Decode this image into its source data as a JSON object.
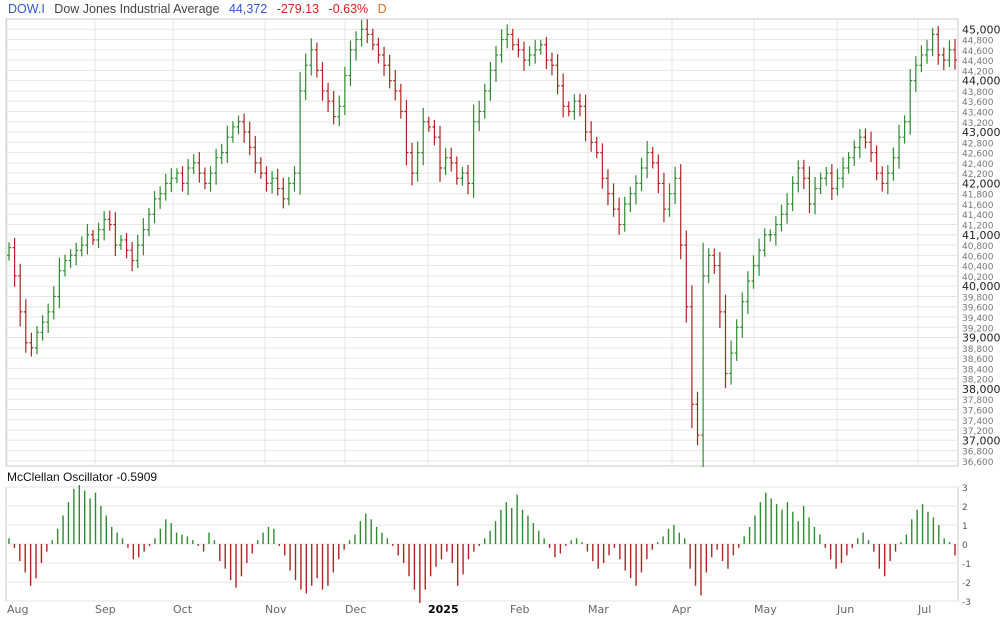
{
  "header": {
    "symbol": "DOW.I",
    "name": "Dow Jones Industrial Average",
    "last": "44,372",
    "change": "-279.13",
    "change_pct": "-0.63%",
    "period": "D"
  },
  "oscillator": {
    "title": "McClellan Oscillator",
    "value": "-0.5909"
  },
  "colors": {
    "up": "#2e8b2e",
    "down": "#b22222",
    "symbol": "#3355cc",
    "name": "#444444",
    "last": "#3355cc",
    "negative": "#d42020",
    "period": "#e07020",
    "grid": "#e6e6e6",
    "frame": "#c8c8c8"
  },
  "chart_data": [
    {
      "type": "ohlc",
      "title": "Dow Jones Industrial Average",
      "y_ticks": [
        "36,600",
        "36,800",
        "37,000",
        "37,200",
        "37,400",
        "37,600",
        "37,800",
        "38,000",
        "38,200",
        "38,400",
        "38,600",
        "38,800",
        "39,000",
        "39,200",
        "39,400",
        "39,600",
        "39,800",
        "40,000",
        "40,200",
        "40,400",
        "40,600",
        "40,800",
        "41,000",
        "41,200",
        "41,400",
        "41,600",
        "41,800",
        "42,000",
        "42,200",
        "42,400",
        "42,600",
        "42,800",
        "43,000",
        "43,200",
        "43,400",
        "43,600",
        "43,800",
        "44,000",
        "44,200",
        "44,400",
        "44,600",
        "44,800",
        "45,000"
      ],
      "x_labels": [
        "Aug",
        "Sep",
        "Oct",
        "Nov",
        "Dec",
        "2025",
        "Feb",
        "Mar",
        "Apr",
        "May",
        "Jun",
        "Jul"
      ],
      "ylim": [
        36500,
        45200
      ],
      "grid": true,
      "series_close": [
        40750,
        40200,
        39500,
        38900,
        38800,
        39100,
        39300,
        39500,
        39800,
        40300,
        40500,
        40600,
        40700,
        40800,
        41000,
        40900,
        41100,
        41300,
        41200,
        40800,
        40900,
        40700,
        40500,
        40800,
        41100,
        41400,
        41700,
        41800,
        42000,
        42100,
        42200,
        42000,
        42300,
        42400,
        42200,
        42000,
        42200,
        42500,
        42600,
        42900,
        43100,
        43200,
        43000,
        42700,
        42400,
        42200,
        42000,
        42100,
        41900,
        41700,
        42000,
        42200,
        43800,
        44300,
        44600,
        44200,
        43800,
        43600,
        43300,
        43500,
        44100,
        44600,
        44800,
        45000,
        44900,
        44700,
        44500,
        44300,
        44000,
        43800,
        43400,
        42600,
        42200,
        42600,
        43200,
        43100,
        42900,
        42300,
        42500,
        42400,
        42100,
        42200,
        42000,
        43200,
        43400,
        43800,
        44200,
        44500,
        44800,
        44900,
        44700,
        44600,
        44400,
        44500,
        44600,
        44700,
        44400,
        44300,
        43900,
        43500,
        43400,
        43600,
        43500,
        43000,
        42800,
        42600,
        42100,
        41800,
        41500,
        41200,
        41600,
        41800,
        42000,
        42300,
        42600,
        42400,
        42000,
        41500,
        41800,
        42100,
        40800,
        39600,
        37700,
        37100,
        40200,
        40600,
        40400,
        39500,
        38300,
        38700,
        39200,
        39700,
        40100,
        40400,
        40700,
        41000,
        41000,
        41200,
        41400,
        41600,
        42000,
        42300,
        42100,
        41600,
        41900,
        42100,
        42200,
        41900,
        42100,
        42300,
        42500,
        42700,
        42900,
        42800,
        42600,
        42200,
        42000,
        42200,
        42500,
        42900,
        43200,
        44000,
        44300,
        44500,
        44600,
        44900,
        44500,
        44400,
        44600,
        44400
      ],
      "y_unit": "index points"
    },
    {
      "type": "bar",
      "title": "McClellan Oscillator -0.5909",
      "ylim": [
        -3,
        3
      ],
      "y_ticks": [
        "-3",
        "-2",
        "-1",
        "0",
        "1",
        "2",
        "3"
      ],
      "values": [
        0.3,
        -0.2,
        -0.9,
        -1.5,
        -2.2,
        -1.8,
        -1.0,
        -0.4,
        0.2,
        0.8,
        1.5,
        2.2,
        2.9,
        3.1,
        2.8,
        2.4,
        2.7,
        2.0,
        1.5,
        0.9,
        0.6,
        0.3,
        -0.2,
        -0.8,
        -0.7,
        -0.4,
        -0.1,
        0.3,
        0.8,
        1.3,
        1.1,
        0.6,
        0.5,
        0.4,
        0.2,
        -0.1,
        -0.4,
        0.6,
        0.2,
        -0.9,
        -1.3,
        -1.9,
        -2.3,
        -1.7,
        -1.0,
        -0.5,
        0.2,
        0.6,
        0.9,
        0.8,
        -0.1,
        -0.6,
        -1.4,
        -1.9,
        -2.4,
        -2.6,
        -2.2,
        -1.8,
        -2.4,
        -2.2,
        -1.5,
        -0.8,
        -0.3,
        0.2,
        0.5,
        1.2,
        1.6,
        1.3,
        0.9,
        0.6,
        0.3,
        -0.1,
        -0.6,
        -1.0,
        -1.7,
        -2.4,
        -3.1,
        -2.4,
        -1.7,
        -1.2,
        -0.8,
        -0.4,
        -1.0,
        -2.2,
        -1.6,
        -0.8,
        -0.4,
        -0.1,
        0.3,
        0.7,
        1.2,
        1.8,
        2.2,
        1.9,
        2.6,
        1.8,
        1.5,
        1.1,
        0.7,
        0.3,
        -0.2,
        -0.7,
        -0.5,
        -0.1,
        0.2,
        0.3,
        0.1,
        -0.4,
        -0.9,
        -1.3,
        -1.0,
        -0.6,
        -0.2,
        -0.8,
        -1.4,
        -1.8,
        -2.2,
        -1.5,
        -0.8,
        -0.3,
        0.1,
        0.4,
        0.8,
        1.0,
        0.6,
        0.3,
        -1.3,
        -2.2,
        -2.7,
        -1.5,
        -0.7,
        -0.3,
        -0.9,
        -1.3,
        -0.6,
        -0.2,
        0.4,
        0.9,
        1.5,
        2.2,
        2.7,
        2.4,
        2.1,
        1.8,
        2.2,
        1.7,
        1.2,
        2.0,
        1.4,
        0.9,
        0.5,
        -0.2,
        -0.8,
        -1.3,
        -1.0,
        -0.6,
        -0.2,
        0.3,
        0.6,
        0.2,
        -0.4,
        -1.3,
        -1.7,
        -0.9,
        -0.4,
        0.1,
        0.5,
        1.3,
        1.8,
        2.1,
        1.7,
        1.4,
        1.0,
        0.3,
        0.1,
        -0.6
      ]
    }
  ]
}
